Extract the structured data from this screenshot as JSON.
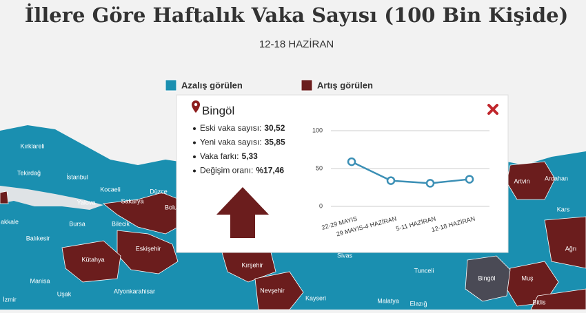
{
  "header": {
    "title": "İllere Göre Haftalık Vaka Sayısı (100 Bin Kişide)",
    "subtitle": "12-18 HAZİRAN"
  },
  "legend": [
    {
      "label": "Azalış görülen",
      "color": "#1a8fb0"
    },
    {
      "label": "Artış görülen",
      "color": "#6b1d1d"
    }
  ],
  "map": {
    "provinces": [
      "Kırklareli",
      "Tekirdağ",
      "İstanbul",
      "Kocaeli",
      "Düzce",
      "Sakarya",
      "Bolu",
      "Yalova",
      "Bursa",
      "Bilecik",
      "Balıkesir",
      "Eskişehir",
      "Kütahya",
      "Manisa",
      "Uşak",
      "Afyonkarahisar",
      "İzmir",
      "akkale",
      "Kırşehir",
      "Nevşehir",
      "Kayseri",
      "Sivas",
      "Malatya",
      "Tunceli",
      "Elazığ",
      "Bingöl",
      "Muş",
      "Bitlis",
      "Ağrı",
      "Kars",
      "Ardahan",
      "Artvin"
    ]
  },
  "popup": {
    "title": "Bingöl",
    "items": [
      {
        "label": "Eski vaka sayısı:",
        "value": "30,52"
      },
      {
        "label": "Yeni vaka sayısı:",
        "value": "35,85"
      },
      {
        "label": "Vaka farkı:",
        "value": "5,33"
      },
      {
        "label": "Değişim oranı:",
        "value": "%17,46"
      }
    ],
    "chart_data": {
      "type": "line",
      "categories": [
        "22-29 MAYIS",
        "29 MAYIS-4 HAZİRAN",
        "5-11 HAZİRAN",
        "12-18 HAZİRAN"
      ],
      "values": [
        59,
        34,
        30.52,
        35.85
      ],
      "color": "#3b8fb5",
      "ylim": [
        0,
        100
      ],
      "yticks": [
        0,
        50,
        100
      ],
      "grid": true
    }
  }
}
